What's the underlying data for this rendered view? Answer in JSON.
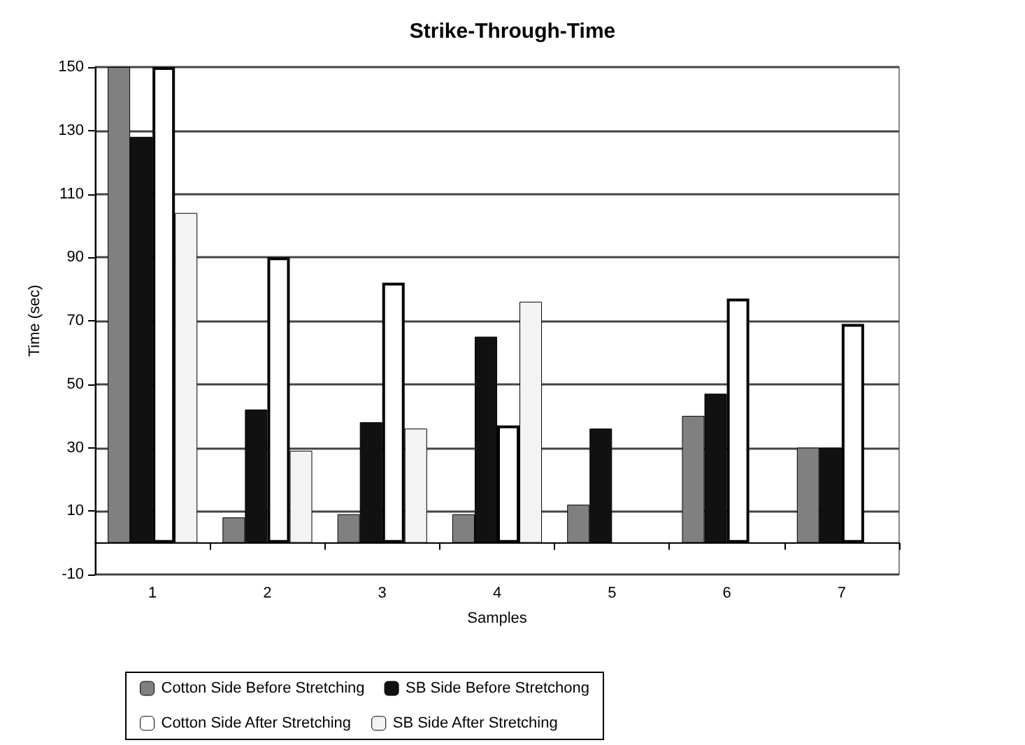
{
  "chart_data": {
    "type": "bar",
    "title": "Strike-Through-Time",
    "xlabel": "Samples",
    "ylabel": "Time (sec)",
    "categories": [
      "1",
      "2",
      "3",
      "4",
      "5",
      "6",
      "7"
    ],
    "series": [
      {
        "name": "Cotton Side Before Stretching",
        "color": "#808080",
        "values": [
          150,
          8,
          9,
          9,
          12,
          40,
          30
        ]
      },
      {
        "name": "SB Side Before Stretchong",
        "color": "#111111",
        "values": [
          128,
          42,
          38,
          65,
          36,
          47,
          30
        ]
      },
      {
        "name": "Cotton Side After Stretching",
        "color": "#ffffff",
        "values": [
          150,
          90,
          82,
          37,
          null,
          77,
          69
        ]
      },
      {
        "name": "SB Side After Stretching",
        "color": "#f3f3f3",
        "values": [
          104,
          29,
          36,
          76,
          null,
          null,
          null
        ]
      }
    ],
    "ylim": [
      -10,
      150
    ],
    "yticks": [
      -10,
      10,
      30,
      50,
      70,
      90,
      110,
      130,
      150
    ],
    "grid": "y",
    "legend": "bottom"
  }
}
